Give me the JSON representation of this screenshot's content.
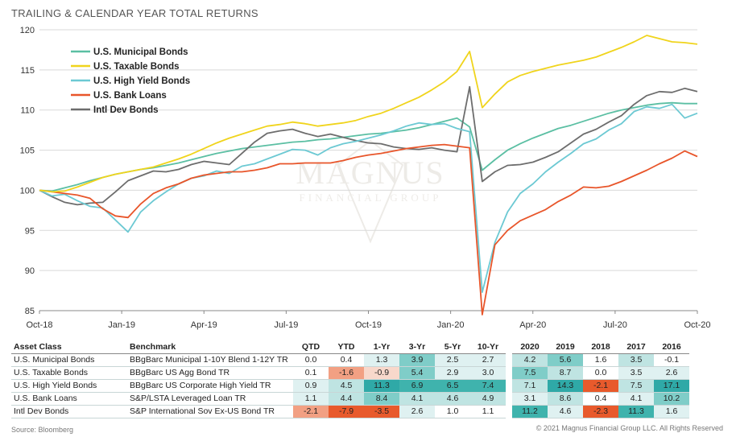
{
  "title": "TRAILING & CALENDAR YEAR TOTAL RETURNS",
  "watermark": {
    "line1": "MAGNUS",
    "line2": "FINANCIAL GROUP"
  },
  "chart_data": {
    "type": "line",
    "x_tick_labels": [
      "Oct-18",
      "Jan-19",
      "Apr-19",
      "Jul-19",
      "Oct-19",
      "Jan-20",
      "Apr-20",
      "Jul-20",
      "Oct-20"
    ],
    "ylim": [
      85,
      120
    ],
    "yticks": [
      85,
      90,
      95,
      100,
      105,
      110,
      115,
      120
    ],
    "grid": "horizontal",
    "legend_position": "top-left",
    "series": [
      {
        "name": "U.S.  Municipal Bonds",
        "color": "#5bbfa3",
        "values": [
          100,
          99.9,
          100.3,
          100.7,
          101.2,
          101.6,
          102.0,
          102.3,
          102.6,
          102.8,
          103.1,
          103.4,
          103.8,
          104.2,
          104.6,
          104.9,
          105.2,
          105.4,
          105.6,
          105.8,
          106.0,
          106.1,
          106.3,
          106.4,
          106.6,
          106.8,
          107.0,
          107.1,
          107.3,
          107.5,
          107.8,
          108.2,
          108.6,
          109.0,
          107.9,
          102.5,
          103.8,
          105.0,
          105.8,
          106.5,
          107.1,
          107.7,
          108.1,
          108.6,
          109.1,
          109.6,
          110.0,
          110.3,
          110.6,
          110.8,
          110.9,
          110.8,
          110.8
        ]
      },
      {
        "name": "U.S. Taxable Bonds",
        "color": "#f0d41c",
        "values": [
          100,
          99.8,
          99.9,
          100.4,
          101.0,
          101.6,
          102.0,
          102.3,
          102.6,
          102.9,
          103.4,
          103.9,
          104.5,
          105.2,
          105.9,
          106.5,
          107.0,
          107.5,
          108.0,
          108.2,
          108.5,
          108.3,
          108.0,
          108.2,
          108.4,
          108.7,
          109.2,
          109.6,
          110.2,
          110.9,
          111.6,
          112.5,
          113.5,
          114.8,
          117.3,
          110.3,
          112.0,
          113.5,
          114.3,
          114.8,
          115.2,
          115.6,
          115.9,
          116.2,
          116.6,
          117.2,
          117.8,
          118.5,
          119.3,
          118.9,
          118.5,
          118.4,
          118.2
        ]
      },
      {
        "name": "U.S. High Yield Bonds",
        "color": "#6cc9d3",
        "values": [
          100,
          99.3,
          99.5,
          98.7,
          98.0,
          97.8,
          96.3,
          94.8,
          97.3,
          98.7,
          99.8,
          100.8,
          101.5,
          101.8,
          102.4,
          102.1,
          103.0,
          103.3,
          103.9,
          104.5,
          105.1,
          105.0,
          104.4,
          105.3,
          105.8,
          106.1,
          106.5,
          106.9,
          107.4,
          108.0,
          108.4,
          108.2,
          108.3,
          107.7,
          107.3,
          87.3,
          93.5,
          97.3,
          99.6,
          100.8,
          102.3,
          103.5,
          104.6,
          105.8,
          106.4,
          107.5,
          108.3,
          109.8,
          110.4,
          110.2,
          110.7,
          109.0,
          109.6
        ]
      },
      {
        "name": "U.S. Bank Loans",
        "color": "#e8552a",
        "values": [
          100,
          99.8,
          99.6,
          99.4,
          99.0,
          97.7,
          96.8,
          96.6,
          98.3,
          99.6,
          100.3,
          100.8,
          101.5,
          101.9,
          102.1,
          102.3,
          102.3,
          102.5,
          102.8,
          103.3,
          103.3,
          103.4,
          103.4,
          103.4,
          103.7,
          104.1,
          104.4,
          104.6,
          104.9,
          105.2,
          105.4,
          105.6,
          105.7,
          105.5,
          105.3,
          84.5,
          93.2,
          95.0,
          96.2,
          96.9,
          97.6,
          98.6,
          99.4,
          100.4,
          100.3,
          100.5,
          101.1,
          101.8,
          102.5,
          103.3,
          104.0,
          104.9,
          104.2
        ]
      },
      {
        "name": "Intl Dev Bonds",
        "color": "#6d6d6d",
        "values": [
          100,
          99.2,
          98.5,
          98.2,
          98.4,
          98.5,
          99.8,
          101.2,
          101.8,
          102.4,
          102.3,
          102.6,
          103.2,
          103.6,
          103.4,
          103.2,
          104.6,
          106.0,
          107.1,
          107.4,
          107.6,
          107.1,
          106.7,
          107.0,
          106.6,
          106.2,
          105.9,
          105.8,
          105.4,
          105.2,
          105.1,
          105.3,
          105.0,
          104.8,
          112.9,
          101.1,
          102.3,
          103.1,
          103.2,
          103.5,
          104.1,
          104.8,
          105.9,
          107.0,
          107.6,
          108.5,
          109.3,
          110.7,
          111.8,
          112.3,
          112.2,
          112.7,
          112.3
        ]
      }
    ]
  },
  "table": {
    "headers": [
      "Asset Class",
      "Benchmark",
      "QTD",
      "YTD",
      "1-Yr",
      "3-Yr",
      "5-Yr",
      "10-Yr",
      "2020",
      "2019",
      "2018",
      "2017",
      "2016"
    ],
    "rows": [
      {
        "asset": "U.S. Municipal Bonds",
        "benchmark": "BBgBarc Municipal 1-10Y Blend 1-12Y TR",
        "values": [
          "0.0",
          "0.4",
          "1.3",
          "3.9",
          "2.5",
          "2.7",
          "4.2",
          "5.6",
          "1.6",
          "3.5",
          "-0.1"
        ],
        "colors": [
          "#ffffff",
          "#ffffff",
          "#dff1f1",
          "#7fcdc8",
          "#dff1f1",
          "#dff1f1",
          "#bfe4e2",
          "#7fcdc8",
          "#ffffff",
          "#bfe4e2",
          "#ffffff"
        ]
      },
      {
        "asset": "U.S. Taxable Bonds",
        "benchmark": "BBgBarc US Agg Bond TR",
        "values": [
          "0.1",
          "-1.6",
          "-0.9",
          "5.4",
          "2.9",
          "3.0",
          "7.5",
          "8.7",
          "0.0",
          "3.5",
          "2.6"
        ],
        "colors": [
          "#ffffff",
          "#f2a083",
          "#f8d8cb",
          "#7fcdc8",
          "#dff1f1",
          "#dff1f1",
          "#7fcdc8",
          "#bfe4e2",
          "#ffffff",
          "#dff1f1",
          "#dff1f1"
        ]
      },
      {
        "asset": "U.S. High Yield Bonds",
        "benchmark": "BBgBarc US Corporate High Yield TR",
        "values": [
          "0.9",
          "4.5",
          "11.3",
          "6.9",
          "6.5",
          "7.4",
          "7.1",
          "14.3",
          "-2.1",
          "7.5",
          "17.1"
        ],
        "colors": [
          "#dff1f1",
          "#bfe4e2",
          "#2fa9a7",
          "#3fb3ad",
          "#3fb3ad",
          "#3fb3ad",
          "#bfe4e2",
          "#2fa9a7",
          "#e85a2c",
          "#bfe4e2",
          "#2fa9a7"
        ]
      },
      {
        "asset": "U.S. Bank Loans",
        "benchmark": "S&P/LSTA Leveraged Loan TR",
        "values": [
          "1.1",
          "4.4",
          "8.4",
          "4.1",
          "4.6",
          "4.9",
          "3.1",
          "8.6",
          "0.4",
          "4.1",
          "10.2"
        ],
        "colors": [
          "#dff1f1",
          "#bfe4e2",
          "#7fcdc8",
          "#bfe4e2",
          "#bfe4e2",
          "#bfe4e2",
          "#dff1f1",
          "#bfe4e2",
          "#ffffff",
          "#dff1f1",
          "#7fcdc8"
        ]
      },
      {
        "asset": "Intl Dev Bonds",
        "benchmark": "S&P International Sov Ex-US Bond TR",
        "values": [
          "-2.1",
          "-7.9",
          "-3.5",
          "2.6",
          "1.0",
          "1.1",
          "11.2",
          "4.6",
          "-2.3",
          "11.3",
          "1.6"
        ],
        "colors": [
          "#f2a083",
          "#e85a2c",
          "#e85a2c",
          "#dff1f1",
          "#ffffff",
          "#ffffff",
          "#3fb3ad",
          "#dff1f1",
          "#e85a2c",
          "#3fb3ad",
          "#dff1f1"
        ]
      }
    ]
  },
  "footer": {
    "source": "Source: Bloomberg",
    "copyright": "© 2021 Magnus Financial Group LLC. All Rights Reserved"
  }
}
